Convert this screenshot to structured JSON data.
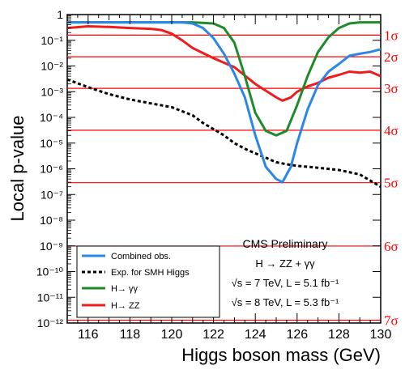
{
  "chart_data": {
    "type": "line",
    "xlabel": "Higgs boson mass (GeV)",
    "ylabel": "Local p-value",
    "xlim": [
      115,
      130
    ],
    "ylim": [
      1e-12,
      1
    ],
    "yscale": "log",
    "x_ticks": [
      "116",
      "118",
      "120",
      "122",
      "124",
      "126",
      "128",
      "130"
    ],
    "y_ticks": [
      {
        "label": "1",
        "exp": 0
      },
      {
        "label": "10⁻¹",
        "exp": -1
      },
      {
        "label": "10⁻²",
        "exp": -2
      },
      {
        "label": "10⁻³",
        "exp": -3
      },
      {
        "label": "10⁻⁴",
        "exp": -4
      },
      {
        "label": "10⁻⁵",
        "exp": -5
      },
      {
        "label": "10⁻⁶",
        "exp": -6
      },
      {
        "label": "10⁻⁷",
        "exp": -7
      },
      {
        "label": "10⁻⁸",
        "exp": -8
      },
      {
        "label": "10⁻⁹",
        "exp": -9
      },
      {
        "label": "10⁻¹⁰",
        "exp": -10
      },
      {
        "label": "10⁻¹¹",
        "exp": -11
      },
      {
        "label": "10⁻¹²",
        "exp": -12
      }
    ],
    "sigma_lines": [
      {
        "label": "1σ",
        "value": 0.159
      },
      {
        "label": "2σ",
        "value": 0.0228
      },
      {
        "label": "3σ",
        "value": 0.00135
      },
      {
        "label": "4σ",
        "value": 3.17e-05
      },
      {
        "label": "5σ",
        "value": 2.87e-07
      },
      {
        "label": "6σ",
        "value": 9.87e-10
      },
      {
        "label": "7σ",
        "value": 1.28e-12
      }
    ],
    "series": [
      {
        "name": "Combined obs.",
        "color": "#2b86e8",
        "style": "solid",
        "x": [
          115,
          116,
          117,
          118,
          119,
          120,
          120.5,
          121,
          121.5,
          122,
          122.5,
          123,
          123.5,
          124,
          124.5,
          125,
          125.3,
          125.7,
          126,
          126.5,
          127,
          127.5,
          128,
          128.5,
          129,
          129.5,
          130
        ],
        "y": [
          0.5,
          0.5,
          0.5,
          0.5,
          0.5,
          0.5,
          0.5,
          0.45,
          0.3,
          0.12,
          0.03,
          0.005,
          0.0006,
          2e-05,
          1.2e-06,
          4e-07,
          3e-07,
          1.2e-06,
          1e-05,
          0.0002,
          0.0018,
          0.006,
          0.012,
          0.025,
          0.03,
          0.035,
          0.045
        ]
      },
      {
        "name": "Exp. for SMH Higgs",
        "color": "#000000",
        "style": "dashed",
        "x": [
          115,
          116,
          117,
          118,
          119,
          120,
          121,
          121.5,
          122,
          122.5,
          123,
          123.5,
          124,
          124.5,
          125,
          125.5,
          126,
          127,
          128,
          129,
          130
        ],
        "y": [
          0.003,
          0.0015,
          0.0008,
          0.0005,
          0.00035,
          0.00025,
          0.00012,
          6e-05,
          3.5e-05,
          2e-05,
          1e-05,
          6e-06,
          4e-06,
          2.7e-06,
          1.8e-06,
          1.5e-06,
          1.3e-06,
          1.1e-06,
          9e-07,
          6e-07,
          2e-07
        ]
      },
      {
        "name": "H→ γγ",
        "color": "#1f8a2b",
        "style": "solid",
        "x": [
          115,
          116,
          117,
          118,
          119,
          120,
          121,
          122,
          122.5,
          123,
          123.5,
          124,
          124.5,
          125,
          125.5,
          126,
          126.5,
          127,
          127.5,
          128,
          128.5,
          129,
          130
        ],
        "y": [
          0.5,
          0.5,
          0.5,
          0.5,
          0.5,
          0.5,
          0.5,
          0.45,
          0.3,
          0.08,
          0.004,
          0.00015,
          3e-05,
          2e-05,
          3e-05,
          0.0003,
          0.004,
          0.035,
          0.13,
          0.3,
          0.45,
          0.5,
          0.5
        ]
      },
      {
        "name": "H→ ZZ",
        "color": "#ee1c1c",
        "style": "solid",
        "x": [
          115,
          116,
          117,
          118,
          119,
          119.5,
          120,
          120.5,
          121,
          122,
          123,
          124,
          125,
          125.3,
          125.7,
          126,
          126.5,
          127,
          127.5,
          128,
          128.5,
          129,
          129.5,
          130
        ],
        "y": [
          0.3,
          0.35,
          0.33,
          0.3,
          0.28,
          0.25,
          0.18,
          0.1,
          0.05,
          0.02,
          0.009,
          0.002,
          0.0006,
          0.00045,
          0.0006,
          0.001,
          0.0016,
          0.0022,
          0.0035,
          0.0045,
          0.006,
          0.0055,
          0.006,
          0.004
        ]
      }
    ],
    "legend_position": "bottom-left",
    "annotations": {
      "title": "CMS Preliminary",
      "channel": "H → ZZ + γγ",
      "line1": "√s = 7 TeV, L = 5.1 fb⁻¹",
      "line2": "√s = 8 TeV, L = 5.3 fb⁻¹"
    }
  }
}
